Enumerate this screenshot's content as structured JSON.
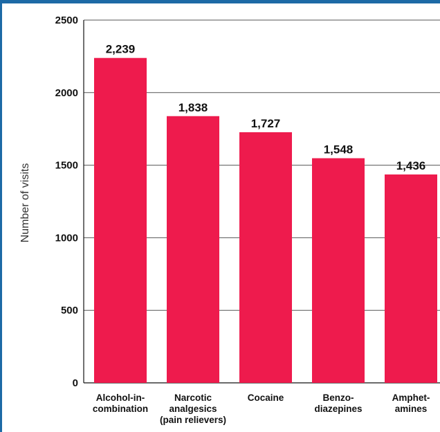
{
  "chart_data": {
    "type": "bar",
    "title": "",
    "xlabel": "",
    "ylabel": "Number of visits",
    "ylim": [
      0,
      2500
    ],
    "yticks": [
      0,
      500,
      1000,
      1500,
      2000,
      2500
    ],
    "grid": true,
    "bar_color": "#ee1b4d",
    "categories": [
      "Alcohol-in-\ncombination",
      "Narcotic\nanalgesics\n(pain relievers)",
      "Cocaine",
      "Benzo-\ndiazepines",
      "Amphet-\namines"
    ],
    "values": [
      2239,
      1838,
      1727,
      1548,
      1436
    ],
    "value_labels": [
      "2,239",
      "1,838",
      "1,727",
      "1,548",
      "1,436"
    ]
  },
  "colors": {
    "frame_accent": "#1d6aa6",
    "bar": "#ee1b4d",
    "gridline": "#555555"
  }
}
